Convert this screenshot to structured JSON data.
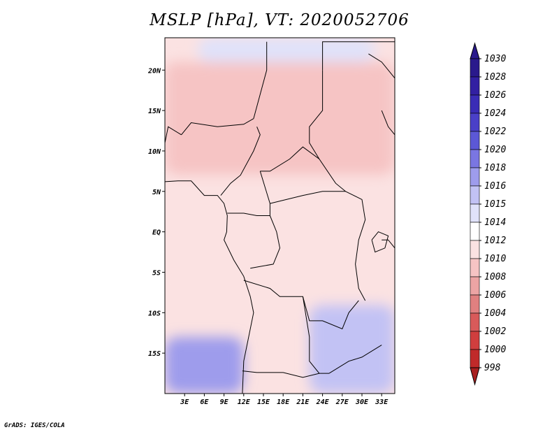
{
  "title": "MSLP [hPa], VT: 2020052706",
  "credit": "GrADS: IGES/COLA",
  "chart_data": {
    "type": "heatmap",
    "title": "MSLP [hPa], VT: 2020052706",
    "variable": "Mean sea level pressure",
    "units": "hPa",
    "valid_time": "2020052706",
    "lon_range": [
      0,
      35
    ],
    "lat_range": [
      -20,
      24
    ],
    "x_ticks": [
      {
        "lon": 3,
        "label": "3E"
      },
      {
        "lon": 6,
        "label": "6E"
      },
      {
        "lon": 9,
        "label": "9E"
      },
      {
        "lon": 12,
        "label": "12E"
      },
      {
        "lon": 15,
        "label": "15E"
      },
      {
        "lon": 18,
        "label": "18E"
      },
      {
        "lon": 21,
        "label": "21E"
      },
      {
        "lon": 24,
        "label": "24E"
      },
      {
        "lon": 27,
        "label": "27E"
      },
      {
        "lon": 30,
        "label": "30E"
      },
      {
        "lon": 33,
        "label": "33E"
      }
    ],
    "y_ticks": [
      {
        "lat": 20,
        "label": "20N"
      },
      {
        "lat": 15,
        "label": "15N"
      },
      {
        "lat": 10,
        "label": "10N"
      },
      {
        "lat": 5,
        "label": "5N"
      },
      {
        "lat": 0,
        "label": "EQ"
      },
      {
        "lat": -5,
        "label": "5S"
      },
      {
        "lat": -10,
        "label": "10S"
      },
      {
        "lat": -15,
        "label": "15S"
      }
    ],
    "colorbar": [
      {
        "label": "1030",
        "color": "#2a1a8c"
      },
      {
        "label": "1028",
        "color": "#3220a2"
      },
      {
        "label": "1026",
        "color": "#3a2cb6"
      },
      {
        "label": "1024",
        "color": "#4a40c8"
      },
      {
        "label": "1022",
        "color": "#5c58d6"
      },
      {
        "label": "1020",
        "color": "#7a76e2"
      },
      {
        "label": "1018",
        "color": "#9e9cec"
      },
      {
        "label": "1016",
        "color": "#c2c2f4"
      },
      {
        "label": "1015",
        "color": "#e0e2fa"
      },
      {
        "label": "1014",
        "color": "#ffffff"
      },
      {
        "label": "1012",
        "color": "#fbe2e2"
      },
      {
        "label": "1010",
        "color": "#f6c4c4"
      },
      {
        "label": "1008",
        "color": "#eca4a4"
      },
      {
        "label": "1006",
        "color": "#e08080"
      },
      {
        "label": "1004",
        "color": "#d85a5a"
      },
      {
        "label": "1002",
        "color": "#d03e3e"
      },
      {
        "label": "1000",
        "color": "#c02a2a"
      },
      {
        "label": "998",
        "color": "#a82020"
      }
    ],
    "field_regions": [
      {
        "name": "sahara-north",
        "value": 1015,
        "lon": [
          5,
          32
        ],
        "lat": [
          21,
          24
        ]
      },
      {
        "name": "sahel-lows",
        "value": 1010,
        "lon": [
          0,
          35
        ],
        "lat": [
          7,
          21
        ]
      },
      {
        "name": "northwest-low",
        "value": 1009,
        "lon": [
          0,
          2
        ],
        "lat": [
          15,
          21
        ]
      },
      {
        "name": "equatorial",
        "value": 1012,
        "lon": [
          0,
          35
        ],
        "lat": [
          -9,
          7
        ]
      },
      {
        "name": "southern-high",
        "value": 1018,
        "lon": [
          0,
          12
        ],
        "lat": [
          -20,
          -13
        ]
      },
      {
        "name": "southeast-high",
        "value": 1016,
        "lon": [
          22,
          35
        ],
        "lat": [
          -20,
          -9
        ]
      }
    ]
  }
}
